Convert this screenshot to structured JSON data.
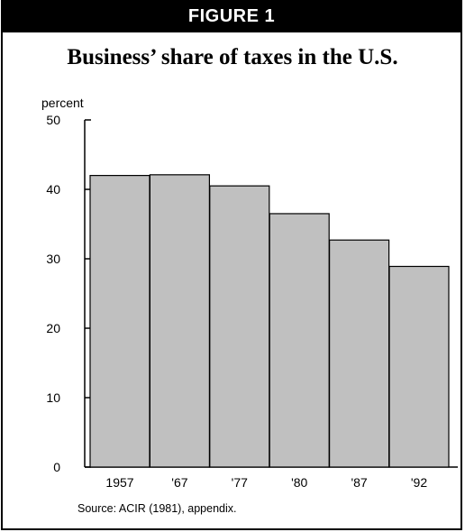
{
  "figure_label": "FIGURE 1",
  "source": "Source: ACIR (1981), appendix.",
  "colors": {
    "bar_fill": "#c0c0c0",
    "bar_stroke": "#000000",
    "banner": "#000000"
  },
  "chart_data": {
    "type": "bar",
    "title": "Business’ share of taxes in the U.S.",
    "ylabel": "percent",
    "xlabel": "",
    "categories": [
      "1957",
      "'67",
      "'77",
      "'80",
      "'87",
      "'92"
    ],
    "values": [
      42,
      42.1,
      40.5,
      36.5,
      32.7,
      28.9
    ],
    "ylim": [
      0,
      50
    ],
    "yticks": [
      0,
      10,
      20,
      30,
      40,
      50
    ],
    "grid": false,
    "legend": "none"
  }
}
